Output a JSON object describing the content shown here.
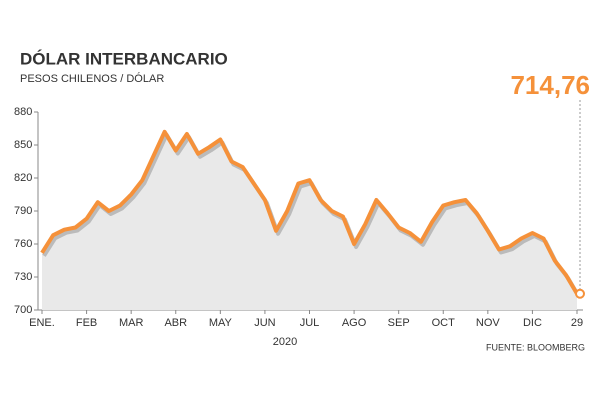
{
  "chart_data": {
    "type": "line",
    "title": "DÓLAR INTERBANCARIO",
    "subtitle": "PESOS CHILENOS / DÓLAR",
    "annotation": "714,76",
    "x_label": "2020",
    "source": "FUENTE: BLOOMBERG",
    "categories": [
      "ENE.",
      null,
      null,
      null,
      "FEB",
      null,
      null,
      null,
      "MAR",
      null,
      null,
      null,
      "ABR",
      null,
      null,
      null,
      "MAY",
      null,
      null,
      null,
      "JUN",
      null,
      null,
      null,
      "JUL",
      null,
      null,
      null,
      "AGO",
      null,
      null,
      null,
      "SEP",
      null,
      null,
      null,
      "OCT",
      null,
      null,
      null,
      "NOV",
      null,
      null,
      null,
      "DIC",
      null,
      null,
      null,
      "29"
    ],
    "series": [
      {
        "name": "Dólar interbancario",
        "color": "#f5913a",
        "values": [
          752,
          768,
          773,
          775,
          783,
          798,
          790,
          795,
          805,
          818,
          840,
          862,
          845,
          860,
          842,
          848,
          855,
          835,
          830,
          815,
          800,
          772,
          790,
          815,
          818,
          800,
          790,
          785,
          760,
          778,
          800,
          788,
          775,
          770,
          762,
          780,
          795,
          798,
          800,
          788,
          772,
          755,
          758,
          765,
          770,
          765,
          745,
          732,
          714.76
        ]
      }
    ],
    "ylim": [
      700,
      880
    ],
    "yticks": [
      700,
      730,
      760,
      790,
      820,
      850,
      880
    ],
    "grid": false
  }
}
